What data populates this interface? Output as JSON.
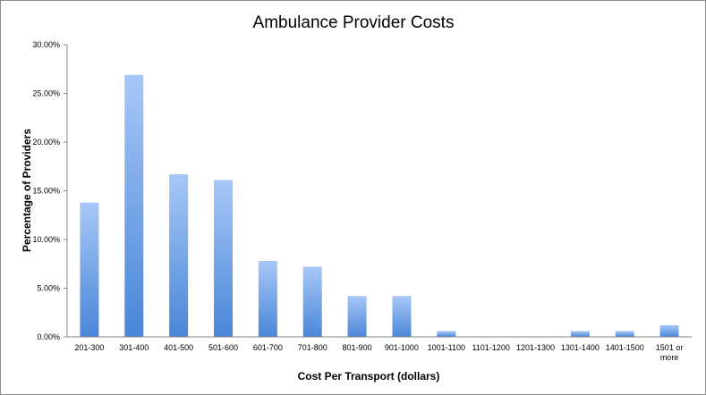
{
  "chart_data": {
    "type": "bar",
    "title": "Ambulance Provider Costs",
    "xlabel": "Cost Per Transport (dollars)",
    "ylabel": "Percentage of Providers",
    "ylim": [
      0,
      30
    ],
    "yticks": [
      "0.00%",
      "5.00%",
      "10.00%",
      "15.00%",
      "20.00%",
      "25.00%",
      "30.00%"
    ],
    "categories": [
      [
        "201-300"
      ],
      [
        "301-400"
      ],
      [
        "401-500"
      ],
      [
        "501-600"
      ],
      [
        "601-700"
      ],
      [
        "701-800"
      ],
      [
        "801-900"
      ],
      [
        "901-1000"
      ],
      [
        "1001-1100"
      ],
      [
        "1101-1200"
      ],
      [
        "1201-1300"
      ],
      [
        "1301-1400"
      ],
      [
        "1401-1500"
      ],
      [
        "1501 or",
        "more"
      ]
    ],
    "values": [
      13.8,
      26.9,
      16.7,
      16.1,
      7.8,
      7.2,
      4.2,
      4.2,
      0.6,
      0,
      0,
      0.6,
      0.6,
      1.2
    ],
    "colors": {
      "bar_top": "#a7c8f7",
      "bar_bottom": "#4a86d8",
      "axis": "#8a8a8a"
    }
  }
}
